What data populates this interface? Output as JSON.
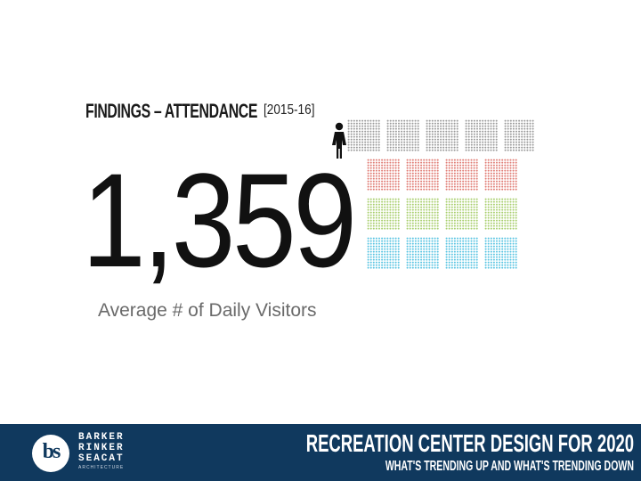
{
  "slide": {
    "heading": "FINDINGS – ATTENDANCE",
    "year": "[2015-16]",
    "big_number": "1,359",
    "caption": "Average # of Daily Visitors"
  },
  "pictogram": {
    "icon": "person-icon",
    "rows": [
      {
        "color": "#9a9a9a",
        "blocks": 5
      },
      {
        "color": "#e07a72",
        "blocks": 4
      },
      {
        "color": "#a9cf6e",
        "blocks": 4
      },
      {
        "color": "#58c4e2",
        "blocks": 4
      }
    ]
  },
  "footer": {
    "logo_initials": "bs",
    "logo_words": [
      "BARKER",
      "RINKER",
      "SEACAT"
    ],
    "logo_sub": "ARCHITECTURE",
    "title": "RECREATION CENTER DESIGN FOR 2020",
    "subtitle": "WHAT'S TRENDING UP AND WHAT'S TRENDING DOWN"
  },
  "colors": {
    "footer_bg": "#10395e",
    "text_dark": "#111111",
    "caption_gray": "#6a6a6a"
  }
}
